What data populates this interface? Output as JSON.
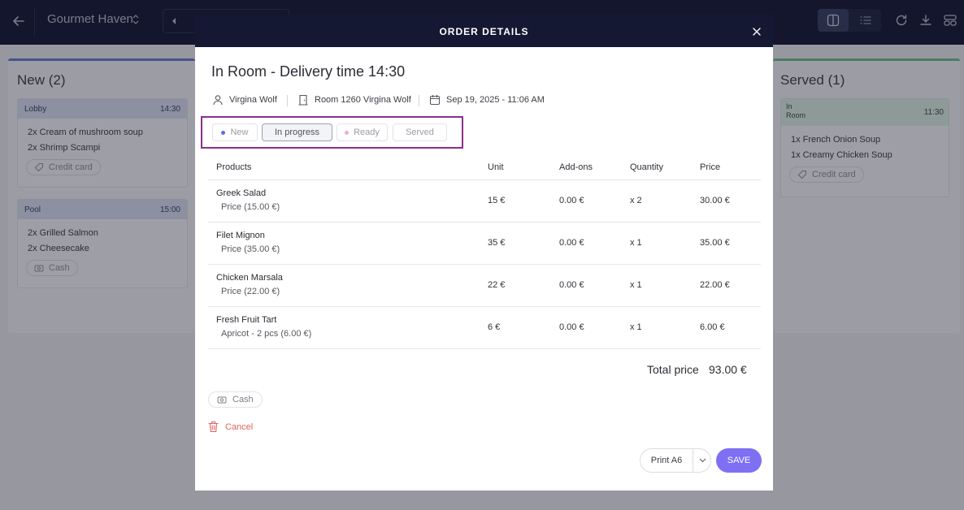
{
  "topbar": {
    "title": "Gourmet Haven"
  },
  "columns": {
    "new": {
      "title": "New (2)",
      "cards": [
        {
          "location": "Lobby",
          "time": "14:30",
          "items": [
            "2x Cream of mushroom soup",
            "2x Shrimp Scampi"
          ],
          "payment": "Credit card"
        },
        {
          "location": "Pool",
          "time": "15:00",
          "items": [
            "2x Grilled Salmon",
            "2x Cheesecake"
          ],
          "payment": "Cash"
        }
      ]
    },
    "served": {
      "title": "Served (1)",
      "cards": [
        {
          "location_line1": "In",
          "location_line2": "Room",
          "time": "11:30",
          "items": [
            "1x French Onion Soup",
            "1x Creamy Chicken Soup"
          ],
          "payment": "Credit card"
        }
      ]
    }
  },
  "modal": {
    "title": "ORDER DETAILS",
    "heading": "In Room - Delivery time 14:30",
    "customer": "Virgina Wolf",
    "room": "Room 1260 Virgina Wolf",
    "date": "Sep 19, 2025 - 11:06 AM",
    "statuses": [
      {
        "label": "New",
        "dot": "#5b6ee8",
        "active": false
      },
      {
        "label": "In progress",
        "dot": "",
        "active": true
      },
      {
        "label": "Ready",
        "dot": "#f1a9e3",
        "active": false
      },
      {
        "label": "Served",
        "dot": "",
        "active": false
      }
    ],
    "table": {
      "headers": {
        "products": "Products",
        "unit": "Unit",
        "addons": "Add-ons",
        "quantity": "Quantity",
        "price": "Price"
      },
      "rows": [
        {
          "name": "Greek Salad",
          "sub": "Price (15.00 €)",
          "unit": "15 €",
          "addons": "0.00 €",
          "qty": "x 2",
          "price": "30.00 €"
        },
        {
          "name": "Filet Mignon",
          "sub": "Price (35.00 €)",
          "unit": "35 €",
          "addons": "0.00 €",
          "qty": "x 1",
          "price": "35.00 €"
        },
        {
          "name": "Chicken Marsala",
          "sub": "Price (22.00 €)",
          "unit": "22 €",
          "addons": "0.00 €",
          "qty": "x 1",
          "price": "22.00 €"
        },
        {
          "name": "Fresh Fruit Tart",
          "sub": "Apricot - 2 pcs (6.00 €)",
          "unit": "6 €",
          "addons": "0.00 €",
          "qty": "x 1",
          "price": "6.00 €"
        }
      ]
    },
    "total_label": "Total price",
    "total_value": "93.00 €",
    "payment": "Cash",
    "cancel": "Cancel",
    "print": "Print A6",
    "save": "SAVE"
  },
  "colors": {
    "navy": "#141833",
    "accent": "#7e6ff3",
    "danger": "#e06262",
    "highlight": "#8b2f8c"
  }
}
